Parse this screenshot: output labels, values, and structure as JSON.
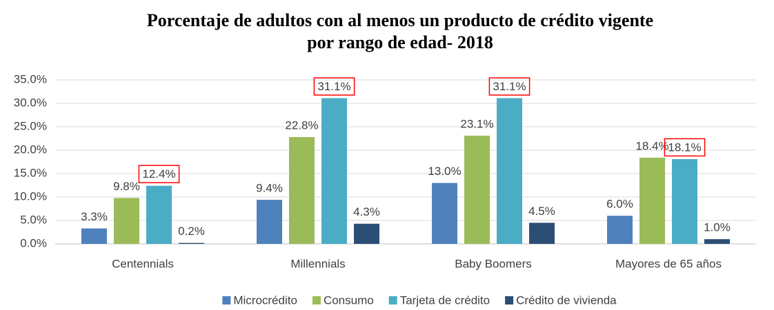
{
  "chart_data": {
    "type": "bar",
    "title": [
      "Porcentaje de adultos con al menos un producto de crédito vigente",
      "por rango de edad- 2018"
    ],
    "categories": [
      "Centennials",
      "Millennials",
      "Baby Boomers",
      "Mayores de 65 años"
    ],
    "series": [
      {
        "name": "Microcrédito",
        "color": "#4f81bd",
        "values": [
          3.3,
          9.4,
          13.0,
          6.0
        ],
        "value_labels": [
          "3.3%",
          "9.4%",
          "13.0%",
          "6.0%"
        ]
      },
      {
        "name": "Consumo",
        "color": "#9bbb59",
        "values": [
          9.8,
          22.8,
          23.1,
          18.4
        ],
        "value_labels": [
          "9.8%",
          "22.8%",
          "23.1%",
          "18.4%"
        ]
      },
      {
        "name": "Tarjeta de crédito",
        "color": "#4bacc6",
        "values": [
          12.4,
          31.1,
          31.1,
          18.1
        ],
        "value_labels": [
          "12.4%",
          "31.1%",
          "31.1%",
          "18.1%"
        ],
        "highlight": true
      },
      {
        "name": "Crédito de vivienda",
        "color": "#2c4d75",
        "values": [
          0.2,
          4.3,
          4.5,
          1.0
        ],
        "value_labels": [
          "0.2%",
          "4.3%",
          "4.5%",
          "1.0%"
        ]
      }
    ],
    "ylim": [
      0,
      35
    ],
    "yticks": [
      {
        "value": 0,
        "label": "0.0%"
      },
      {
        "value": 5,
        "label": "5.0%"
      },
      {
        "value": 10,
        "label": "10.0%"
      },
      {
        "value": 15,
        "label": "15.0%"
      },
      {
        "value": 20,
        "label": "20.0%"
      },
      {
        "value": 25,
        "label": "25.0%"
      },
      {
        "value": 30,
        "label": "30.0%"
      },
      {
        "value": 35,
        "label": "35.0%"
      }
    ],
    "grid": true,
    "legend": "bottom",
    "highlight_color": "#ff0000"
  }
}
